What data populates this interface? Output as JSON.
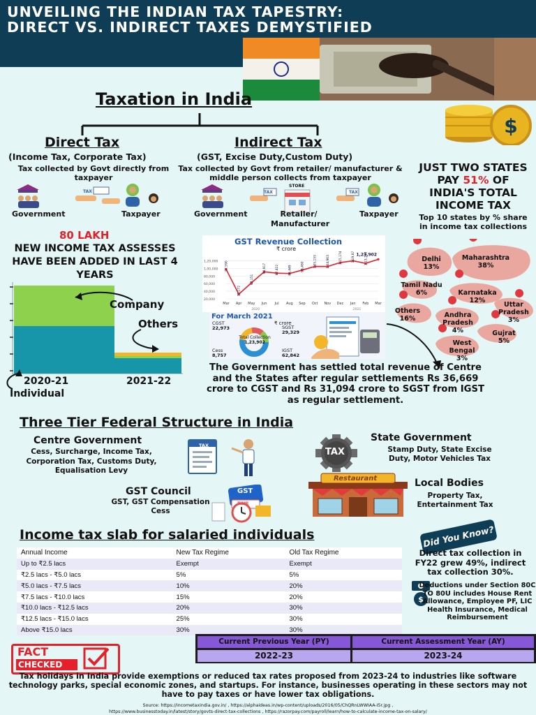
{
  "title": "UNVEILING THE INDIAN TAX TAPESTRY: DIRECT VS. INDIRECT TAXES DEMYSTIFIED",
  "taxation_heading": "Taxation in India",
  "direct": {
    "heading": "Direct Tax",
    "sub": "(Income Tax, Corporate Tax)",
    "desc": "Tax collected by Govt directly from taxpayer",
    "government": "Government",
    "taxpayer": "Taxpayer",
    "tax_tag": "TAX"
  },
  "indirect": {
    "heading": "Indirect Tax",
    "sub": "(GST, Excise Duty,Custom Duty)",
    "desc": "Tax collected by Govt from retailer/ manufacturer & middle person collects from taxpayer",
    "government": "Government",
    "retailer": "Retailer/ Manufacturer",
    "taxpayer": "Taxpayer",
    "store_tag": "STORE",
    "tax_tag": "TAX"
  },
  "states": {
    "headline_1": "JUST TWO STATES",
    "headline_2a": "PAY ",
    "headline_2b": "51%",
    "headline_2c": " OF",
    "headline_3": "INDIA'S TOTAL",
    "headline_4": "INCOME TAX",
    "sub": "Top 10 states by % share in income tax collections",
    "items": [
      {
        "name": "Delhi",
        "pct": "13%"
      },
      {
        "name": "Maharashtra",
        "pct": "38%"
      },
      {
        "name": "Tamil Nadu",
        "pct": "6%"
      },
      {
        "name": "Karnataka",
        "pct": "12%"
      },
      {
        "name": "Uttar Pradesh",
        "pct": "3%"
      },
      {
        "name": "Others",
        "pct": "16%"
      },
      {
        "name": "Andhra Pradesh",
        "pct": "4%"
      },
      {
        "name": "Gujrat",
        "pct": "5%"
      },
      {
        "name": "West Bengal",
        "pct": "3%"
      }
    ]
  },
  "lakh": {
    "red": "80 LAKH",
    "line": "NEW INCOME TAX ASSESSES HAVE BEEN ADDED IN LAST 4 YEARS",
    "company": "Company",
    "others": "Others",
    "individual": "Individual",
    "year1": "2020-21",
    "year2": "2021-22"
  },
  "chart_data": {
    "type": "bar",
    "categories": [
      "2020-21",
      "2021-22"
    ],
    "series": [
      {
        "name": "Individual"
      },
      {
        "name": "Company"
      },
      {
        "name": "Others"
      }
    ]
  },
  "gst": {
    "title": "GST Revenue Collection",
    "unit": "₹ crore",
    "months": [
      "Mar",
      "Apr",
      "May",
      "Jun",
      "Jul",
      "Aug",
      "Sep",
      "Oct",
      "Nov",
      "Dec",
      "Jan",
      "Feb",
      "Mar"
    ],
    "values": [
      "97,590",
      "32,172",
      "62,151",
      "90,917",
      "87,422",
      "86,449",
      "95,480",
      "1,05,155",
      "1,04,963",
      "1,15,174",
      "1,19,875",
      "1,13,143",
      "1,23,902"
    ],
    "yaxis": [
      "1,20,000",
      "1,00,000",
      "80,000",
      "60,000",
      "40,000",
      "20,000"
    ],
    "year_left": "2020",
    "year_right": "2021",
    "march_title": "For March 2021",
    "cgst_label": "CGST",
    "cgst_value": "22,973",
    "sgst_label": "SGST",
    "sgst_value": "29,329",
    "cess_label": "Cess",
    "cess_value": "8,757",
    "igst_label": "IGST",
    "igst_value": "62,842",
    "total_label": "Total Collection",
    "total_value": "1,23,902",
    "unit2": "₹ crore"
  },
  "settlement": "The Government has settled total revenue of Centre and the States after regular settlements Rs 36,669 crore to CGST and Rs 31,094 crore to SGST from IGST as regular settlement.",
  "federal": {
    "heading": "Three Tier Federal Structure in India",
    "centre_title": "Centre Government",
    "centre_desc": "Cess, Surcharge, Income Tax, Corporation Tax, Customs Duty, Equalisation Levy",
    "gst_title": "GST Council",
    "gst_desc": "GST, GST Compensation Cess",
    "state_title": "State Government",
    "state_desc": "Stamp Duty, State Excise Duty, Motor Vehicles Tax",
    "local_title": "Local Bodies",
    "local_desc": "Property Tax, Entertainment Tax",
    "tax_tag": "TAX",
    "gst_tag": "GST",
    "time_tag": "TIME",
    "restaurant_tag": "Restaurant"
  },
  "slab": {
    "heading": "Income tax slab for salaried individuals",
    "headers": [
      "Annual Income",
      "New Tax Regime",
      "Old Tax Regime"
    ],
    "rows": [
      [
        "Up to ₹2.5 lacs",
        "Exempt",
        "Exempt"
      ],
      [
        "₹2.5 lacs - ₹5.0 lacs",
        "5%",
        "5%"
      ],
      [
        "₹5.0 lacs - ₹7.5 lacs",
        "10%",
        "20%"
      ],
      [
        "₹7.5 lacs - ₹10.0 lacs",
        "15%",
        "20%"
      ],
      [
        "₹10.0 lacs - ₹12.5 lacs",
        "20%",
        "30%"
      ],
      [
        "₹12.5 lacs - ₹15.0 lacs",
        "25%",
        "30%"
      ],
      [
        "Above ₹15.0 lacs",
        "30%",
        "30%"
      ]
    ]
  },
  "did_you_know": "Did You Know?",
  "dyk_text": "Direct tax collection in FY22 grew 49%, indirect tax collection 30%.",
  "deductions": "Deductions under Section 80C TO 80U includes House Rent Allowance, Employee PF, LIC Health Insurance, Medical Reimbursement",
  "year_table": {
    "py_label": "Current Previous Year (PY)",
    "ay_label": "Current Assessment Year (AY)",
    "py_value": "2022-23",
    "ay_value": "2023-24"
  },
  "fact_checked_1": "FACT",
  "fact_checked_2": "CHECKED",
  "tax_holiday": "Tax holidays in India provide exemptions or reduced tax rates proposed from 2023-24 to industries like software technology parks, special economic zones, and startups. For instance, businesses operating in these sectors may not have to pay taxes or have lower tax obligations.",
  "source_1": "Source: https://incometaxindia.gov.in/ , https://alphaideas.in/wp-content/uploads/2016/05/ChQRnLWWIAA-I5r.jpg ,",
  "source_2": "https://www.businesstoday.in/latest/story/govts-direct-tax-collections , https://razorpay.com/payroll/learn/how-to-calculate-income-tax-on-salary/",
  "colors": {
    "navy": "#0f3d55",
    "red": "#e5202a",
    "teal": "#1795a9",
    "lime": "#8ed14d",
    "pin": "#e0383f",
    "blob": "#e9a7a0",
    "lavender": "#b8a6ee",
    "purple_header": "#8657d6"
  }
}
